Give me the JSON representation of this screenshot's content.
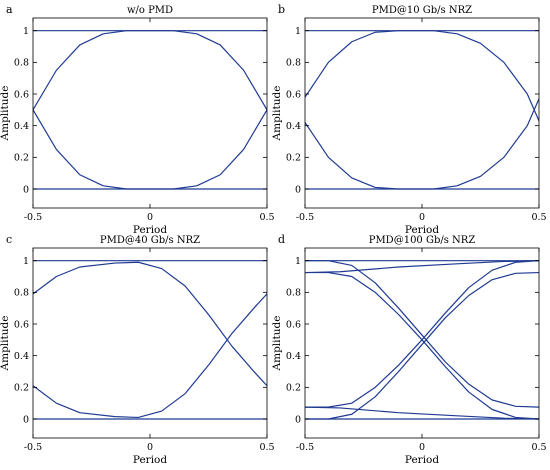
{
  "chart_data": [
    {
      "type": "line",
      "panel_label": "a",
      "title": "w/o PMD",
      "xlabel": "Period",
      "ylabel": "Amplitude",
      "xlim": [
        -0.5,
        0.5
      ],
      "ylim": [
        -0.12,
        1.08
      ],
      "xticks": [
        "-0.5",
        "0",
        "0.5"
      ],
      "yticks": [
        "0",
        "0.2",
        "0.4",
        "0.6",
        "0.8",
        "1"
      ],
      "series": [
        {
          "points": [
            [
              -0.5,
              1
            ],
            [
              0.5,
              1
            ]
          ]
        },
        {
          "points": [
            [
              -0.5,
              0
            ],
            [
              0.5,
              0
            ]
          ]
        },
        {
          "points": [
            [
              -0.5,
              0.5
            ],
            [
              -0.4,
              0.75
            ],
            [
              -0.3,
              0.91
            ],
            [
              -0.2,
              0.98
            ],
            [
              -0.1,
              1
            ],
            [
              0.1,
              1
            ],
            [
              0.2,
              0.98
            ],
            [
              0.3,
              0.91
            ],
            [
              0.4,
              0.75
            ],
            [
              0.5,
              0.5
            ]
          ]
        },
        {
          "points": [
            [
              -0.5,
              0.5
            ],
            [
              -0.4,
              0.25
            ],
            [
              -0.3,
              0.09
            ],
            [
              -0.2,
              0.02
            ],
            [
              -0.1,
              0
            ],
            [
              0.1,
              0
            ],
            [
              0.2,
              0.02
            ],
            [
              0.3,
              0.09
            ],
            [
              0.4,
              0.25
            ],
            [
              0.5,
              0.5
            ]
          ]
        }
      ]
    },
    {
      "type": "line",
      "panel_label": "b",
      "title": "PMD@10 Gb/s NRZ",
      "xlabel": "Period",
      "ylabel": "Amplitude",
      "xlim": [
        -0.5,
        0.5
      ],
      "ylim": [
        -0.12,
        1.08
      ],
      "xticks": [
        "-0.5",
        "0",
        "0.5"
      ],
      "yticks": [
        "0",
        "0.2",
        "0.4",
        "0.6",
        "0.8",
        "1"
      ],
      "series": [
        {
          "points": [
            [
              -0.5,
              1
            ],
            [
              0.5,
              1
            ]
          ]
        },
        {
          "points": [
            [
              -0.5,
              0
            ],
            [
              0.5,
              0
            ]
          ]
        },
        {
          "points": [
            [
              -0.5,
              0.58
            ],
            [
              -0.4,
              0.8
            ],
            [
              -0.3,
              0.93
            ],
            [
              -0.2,
              0.99
            ],
            [
              -0.1,
              1
            ],
            [
              0.05,
              1
            ],
            [
              0.15,
              0.98
            ],
            [
              0.25,
              0.92
            ],
            [
              0.35,
              0.8
            ],
            [
              0.45,
              0.6
            ],
            [
              0.5,
              0.43
            ]
          ]
        },
        {
          "points": [
            [
              -0.5,
              0.42
            ],
            [
              -0.4,
              0.2
            ],
            [
              -0.3,
              0.07
            ],
            [
              -0.2,
              0.01
            ],
            [
              -0.1,
              0
            ],
            [
              0.05,
              0
            ],
            [
              0.15,
              0.02
            ],
            [
              0.25,
              0.08
            ],
            [
              0.35,
              0.2
            ],
            [
              0.45,
              0.4
            ],
            [
              0.5,
              0.57
            ]
          ]
        }
      ]
    },
    {
      "type": "line",
      "panel_label": "c",
      "title": "PMD@40 Gb/s NRZ",
      "xlabel": "Period",
      "ylabel": "Amplitude",
      "xlim": [
        -0.5,
        0.5
      ],
      "ylim": [
        -0.12,
        1.08
      ],
      "xticks": [
        "-0.5",
        "0",
        "0.5"
      ],
      "yticks": [
        "0",
        "0.2",
        "0.4",
        "0.6",
        "0.8",
        "1"
      ],
      "series": [
        {
          "points": [
            [
              -0.5,
              1
            ],
            [
              0.5,
              1
            ]
          ]
        },
        {
          "points": [
            [
              -0.5,
              0
            ],
            [
              0.5,
              0
            ]
          ]
        },
        {
          "points": [
            [
              -0.5,
              0.79
            ],
            [
              -0.4,
              0.9
            ],
            [
              -0.3,
              0.96
            ],
            [
              -0.15,
              0.985
            ],
            [
              -0.05,
              0.99
            ],
            [
              0.05,
              0.95
            ],
            [
              0.15,
              0.84
            ],
            [
              0.25,
              0.66
            ],
            [
              0.35,
              0.46
            ],
            [
              0.45,
              0.29
            ],
            [
              0.5,
              0.21
            ]
          ]
        },
        {
          "points": [
            [
              -0.5,
              0.21
            ],
            [
              -0.4,
              0.1
            ],
            [
              -0.3,
              0.04
            ],
            [
              -0.15,
              0.015
            ],
            [
              -0.05,
              0.01
            ],
            [
              0.05,
              0.05
            ],
            [
              0.15,
              0.16
            ],
            [
              0.25,
              0.34
            ],
            [
              0.35,
              0.54
            ],
            [
              0.45,
              0.71
            ],
            [
              0.5,
              0.79
            ]
          ]
        }
      ]
    },
    {
      "type": "line",
      "panel_label": "d",
      "title": "PMD@100 Gb/s NRZ",
      "xlabel": "Period",
      "ylabel": "Amplitude",
      "xlim": [
        -0.5,
        0.5
      ],
      "ylim": [
        -0.12,
        1.08
      ],
      "xticks": [
        "-0.5",
        "0",
        "0.5"
      ],
      "yticks": [
        "0",
        "0.2",
        "0.4",
        "0.6",
        "0.8",
        "1"
      ],
      "series": [
        {
          "points": [
            [
              -0.5,
              1
            ],
            [
              0.5,
              1
            ]
          ]
        },
        {
          "points": [
            [
              -0.5,
              0
            ],
            [
              0.5,
              0
            ]
          ]
        },
        {
          "points": [
            [
              -0.5,
              0.925
            ],
            [
              -0.35,
              0.93
            ],
            [
              -0.1,
              0.96
            ],
            [
              0.15,
              0.98
            ],
            [
              0.35,
              0.995
            ],
            [
              0.5,
              1
            ]
          ]
        },
        {
          "points": [
            [
              -0.5,
              0.075
            ],
            [
              -0.35,
              0.07
            ],
            [
              -0.1,
              0.04
            ],
            [
              0.15,
              0.02
            ],
            [
              0.35,
              0.005
            ],
            [
              0.5,
              0
            ]
          ]
        },
        {
          "points": [
            [
              -0.5,
              1
            ],
            [
              -0.4,
              1
            ],
            [
              -0.3,
              0.97
            ],
            [
              -0.2,
              0.86
            ],
            [
              -0.1,
              0.7
            ],
            [
              0,
              0.53
            ],
            [
              0.1,
              0.36
            ],
            [
              0.2,
              0.22
            ],
            [
              0.3,
              0.12
            ],
            [
              0.4,
              0.08
            ],
            [
              0.5,
              0.075
            ]
          ]
        },
        {
          "points": [
            [
              -0.5,
              0.925
            ],
            [
              -0.4,
              0.925
            ],
            [
              -0.3,
              0.9
            ],
            [
              -0.2,
              0.8
            ],
            [
              -0.1,
              0.66
            ],
            [
              0,
              0.5
            ],
            [
              0.1,
              0.33
            ],
            [
              0.2,
              0.17
            ],
            [
              0.3,
              0.06
            ],
            [
              0.4,
              0.01
            ],
            [
              0.5,
              0
            ]
          ]
        },
        {
          "points": [
            [
              -0.5,
              0
            ],
            [
              -0.4,
              0
            ],
            [
              -0.3,
              0.03
            ],
            [
              -0.2,
              0.14
            ],
            [
              -0.1,
              0.3
            ],
            [
              0,
              0.47
            ],
            [
              0.1,
              0.64
            ],
            [
              0.2,
              0.78
            ],
            [
              0.3,
              0.88
            ],
            [
              0.4,
              0.92
            ],
            [
              0.5,
              0.925
            ]
          ]
        },
        {
          "points": [
            [
              -0.5,
              0.075
            ],
            [
              -0.4,
              0.075
            ],
            [
              -0.3,
              0.1
            ],
            [
              -0.2,
              0.2
            ],
            [
              -0.1,
              0.34
            ],
            [
              0,
              0.5
            ],
            [
              0.1,
              0.67
            ],
            [
              0.2,
              0.83
            ],
            [
              0.3,
              0.94
            ],
            [
              0.4,
              0.99
            ],
            [
              0.5,
              1
            ]
          ]
        }
      ]
    }
  ],
  "style": {
    "line_color": "#1f3a93",
    "axis_color": "#000000",
    "background": "#ffffff"
  }
}
